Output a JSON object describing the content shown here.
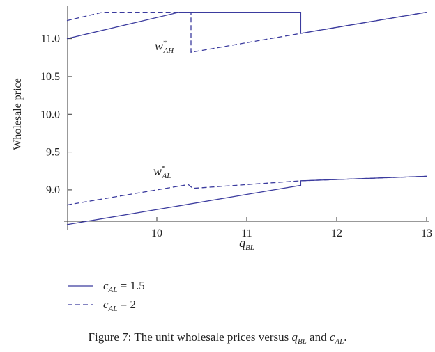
{
  "chart_data": {
    "type": "line",
    "y_label": "Wholesale price",
    "x_label": [
      {
        "text": "q",
        "italic": true,
        "sub": "BL"
      }
    ],
    "xlim": [
      9,
      13
    ],
    "xticks": [
      10,
      11,
      12,
      13
    ],
    "ylim": [
      8.585,
      11.42
    ],
    "yticks": [
      {
        "value": 9,
        "label": "9.0"
      },
      9.5,
      {
        "value": 10,
        "label": "10.0"
      },
      10.5,
      {
        "value": 11,
        "label": "11.0"
      }
    ],
    "series": [
      {
        "name": [
          {
            "text": "c",
            "italic": true,
            "sub": "AL"
          },
          {
            "text": " = 1.5"
          }
        ],
        "color": "#3b3b9e",
        "dash": false,
        "x": [
          9,
          10.25,
          11.6,
          11.6,
          13,
          null,
          9,
          11.6,
          11.6,
          13
        ],
        "values": [
          11.0,
          11.35,
          11.35,
          11.07,
          11.35,
          null,
          8.54,
          9.06,
          9.12,
          9.18
        ]
      },
      {
        "name": [
          {
            "text": "c",
            "italic": true,
            "sub": "AL"
          },
          {
            "text": " = 2"
          }
        ],
        "color": "#3b3b9e",
        "dash": true,
        "x": [
          9,
          9.4,
          10.38,
          10.38,
          11.6,
          13,
          null,
          9,
          10.35,
          10.4,
          11.6,
          13
        ],
        "values": [
          11.24,
          11.35,
          11.35,
          10.82,
          11.07,
          11.35,
          null,
          8.8,
          9.07,
          9.02,
          9.12,
          9.18
        ]
      }
    ],
    "annotations": [
      [
        {
          "text": "w",
          "italic": true,
          "sup": "*",
          "sub": "AH"
        }
      ],
      [
        {
          "text": "w",
          "italic": true,
          "sup": "*",
          "sub": "AL"
        }
      ]
    ],
    "caption": [
      {
        "text": "Figure 7: The unit wholesale prices versus "
      },
      {
        "text": "q",
        "italic": true,
        "sub": "BL"
      },
      {
        "text": " and "
      },
      {
        "text": "c",
        "italic": true,
        "sub": "AL"
      },
      {
        "text": "."
      }
    ]
  }
}
